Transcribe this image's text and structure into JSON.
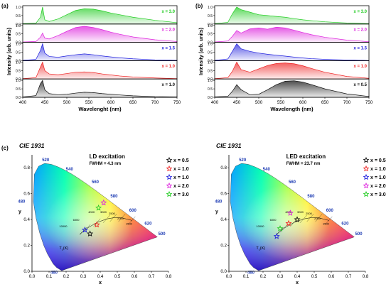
{
  "panel_a": {
    "letter": "(a)",
    "xlabel": "Wavelenght (nm)",
    "ylabel": "Intensity (arb. units)",
    "xticks": [
      "400",
      "450",
      "500",
      "550",
      "600",
      "650",
      "700",
      "750"
    ],
    "yticks": [
      "0.0",
      "0.5",
      "1.0"
    ],
    "labels": [
      "x = 3.0",
      "x = 2.0",
      "x = 1.5",
      "x = 1.0",
      "x = 1.0"
    ]
  },
  "panel_b": {
    "letter": "(b)",
    "xlabel": "Wavelength (nm)",
    "ylabel": "Intensity (arb. units)",
    "xticks": [
      "400",
      "450",
      "500",
      "550",
      "600",
      "650",
      "700",
      "750"
    ],
    "yticks": [
      "0.0",
      "0.5",
      "1.0"
    ],
    "labels": [
      "x = 3.0",
      "x = 2.0",
      "x = 1.5",
      "x = 1.0",
      "x = 0.5"
    ]
  },
  "panel_c": {
    "letter": "(c)",
    "left": {
      "title": "CIE 1931",
      "excitation": "LD excitation",
      "fwhm": "FWHM = 4.3 nm"
    },
    "right": {
      "title": "CIE 1931",
      "excitation": "LED excitation",
      "fwhm": "FWHM = 23.7 nm"
    },
    "legend": [
      "x = 0.5",
      "x = 1.0",
      "x = 1.0",
      "x = 2.0",
      "x = 3.0"
    ],
    "xlabel": "x",
    "ylabel": "y",
    "xticks": [
      "0.0",
      "0.1",
      "0.2",
      "0.3",
      "0.4",
      "0.5",
      "0.6",
      "0.7",
      "0.8"
    ],
    "yticks": [
      "0.0",
      "0.2",
      "0.4",
      "0.6",
      "0.8"
    ],
    "wavelength_labels": [
      "520",
      "540",
      "560",
      "580",
      "600",
      "620",
      "500",
      "480",
      "460"
    ],
    "planck_labels": [
      "10000",
      "6000",
      "4000",
      "3000",
      "2500",
      "2000",
      "1500"
    ],
    "tc_label": "T",
    "tc_sub": "c",
    "tc_unit": "(K)"
  },
  "colors": {
    "x3": "#22cc22",
    "x2": "#dd22dd",
    "x15": "#2222dd",
    "x1": "#ee2222",
    "x05": "#111111"
  },
  "chart_data": [
    {
      "type": "area",
      "title": "",
      "xlabel": "Wavelenght (nm)",
      "ylabel": "Intensity (arb. units)",
      "xlim": [
        400,
        750
      ],
      "ylim": [
        0,
        1.0
      ],
      "x": [
        400,
        430,
        440,
        445,
        450,
        460,
        480,
        500,
        520,
        540,
        560,
        580,
        600,
        620,
        650,
        700,
        750
      ],
      "series": [
        {
          "name": "x = 3.0",
          "values": [
            0.02,
            0.05,
            0.4,
            1.0,
            0.25,
            0.15,
            0.3,
            0.55,
            0.8,
            0.9,
            0.88,
            0.78,
            0.65,
            0.55,
            0.4,
            0.22,
            0.08
          ]
        },
        {
          "name": "x = 2.0",
          "values": [
            0.02,
            0.05,
            0.3,
            0.55,
            0.25,
            0.2,
            0.4,
            0.65,
            0.88,
            0.95,
            0.88,
            0.75,
            0.6,
            0.48,
            0.32,
            0.15,
            0.05
          ]
        },
        {
          "name": "x = 1.5",
          "values": [
            0.02,
            0.08,
            0.6,
            1.0,
            0.45,
            0.25,
            0.2,
            0.28,
            0.35,
            0.4,
            0.35,
            0.28,
            0.22,
            0.17,
            0.11,
            0.05,
            0.02
          ]
        },
        {
          "name": "x = 1.0",
          "values": [
            0.02,
            0.08,
            0.7,
            1.0,
            0.5,
            0.3,
            0.25,
            0.32,
            0.4,
            0.42,
            0.38,
            0.3,
            0.24,
            0.18,
            0.12,
            0.06,
            0.02
          ]
        },
        {
          "name": "x = 1.0",
          "values": [
            0.02,
            0.1,
            0.8,
            1.0,
            0.45,
            0.22,
            0.15,
            0.18,
            0.25,
            0.3,
            0.28,
            0.22,
            0.18,
            0.14,
            0.09,
            0.04,
            0.02
          ]
        }
      ]
    },
    {
      "type": "area",
      "title": "",
      "xlabel": "Wavelength (nm)",
      "ylabel": "Intensity (arb. units)",
      "xlim": [
        400,
        750
      ],
      "ylim": [
        0,
        1.0
      ],
      "x": [
        400,
        430,
        440,
        450,
        460,
        480,
        500,
        520,
        540,
        560,
        580,
        600,
        620,
        650,
        700,
        750
      ],
      "series": [
        {
          "name": "x = 3.0",
          "values": [
            0.02,
            0.1,
            0.6,
            1.0,
            0.85,
            0.7,
            0.55,
            0.5,
            0.45,
            0.4,
            0.32,
            0.25,
            0.2,
            0.13,
            0.06,
            0.02
          ]
        },
        {
          "name": "x = 2.0",
          "values": [
            0.02,
            0.08,
            0.35,
            0.7,
            0.55,
            0.8,
            0.85,
            0.78,
            0.9,
            0.85,
            0.72,
            0.58,
            0.45,
            0.3,
            0.13,
            0.04
          ]
        },
        {
          "name": "x = 1.5",
          "values": [
            0.02,
            0.1,
            0.55,
            1.0,
            0.7,
            0.55,
            0.45,
            0.38,
            0.32,
            0.27,
            0.21,
            0.16,
            0.12,
            0.08,
            0.04,
            0.01
          ]
        },
        {
          "name": "x = 1.0",
          "values": [
            0.02,
            0.08,
            0.45,
            1.0,
            0.55,
            0.4,
            0.6,
            0.8,
            0.92,
            0.95,
            0.9,
            0.78,
            0.62,
            0.4,
            0.15,
            0.04
          ]
        },
        {
          "name": "x = 0.5",
          "values": [
            0.02,
            0.06,
            0.35,
            0.75,
            0.45,
            0.15,
            0.18,
            0.45,
            0.75,
            0.95,
            0.98,
            0.9,
            0.75,
            0.5,
            0.2,
            0.05
          ]
        }
      ]
    },
    {
      "type": "scatter",
      "title": "CIE 1931",
      "xlabel": "x",
      "ylabel": "y",
      "xlim": [
        0,
        0.8
      ],
      "ylim": [
        0,
        0.9
      ],
      "series": [
        {
          "name": "x = 0.5",
          "x": [
            0.34
          ],
          "y": [
            0.29
          ]
        },
        {
          "name": "x = 1.0",
          "x": [
            0.38
          ],
          "y": [
            0.36
          ]
        },
        {
          "name": "x = 1.0",
          "x": [
            0.31
          ],
          "y": [
            0.32
          ]
        },
        {
          "name": "x = 2.0",
          "x": [
            0.42
          ],
          "y": [
            0.53
          ]
        },
        {
          "name": "x = 3.0",
          "x": [
            0.39
          ],
          "y": [
            0.49
          ]
        }
      ]
    },
    {
      "type": "scatter",
      "title": "CIE 1931",
      "xlabel": "x",
      "ylabel": "y",
      "xlim": [
        0,
        0.8
      ],
      "ylim": [
        0,
        0.9
      ],
      "series": [
        {
          "name": "x = 0.5",
          "x": [
            0.4
          ],
          "y": [
            0.4
          ]
        },
        {
          "name": "x = 1.0",
          "x": [
            0.35
          ],
          "y": [
            0.37
          ]
        },
        {
          "name": "x = 1.0",
          "x": [
            0.28
          ],
          "y": [
            0.27
          ]
        },
        {
          "name": "x = 2.0",
          "x": [
            0.36
          ],
          "y": [
            0.45
          ]
        },
        {
          "name": "x = 3.0",
          "x": [
            0.3
          ],
          "y": [
            0.33
          ]
        }
      ]
    }
  ]
}
